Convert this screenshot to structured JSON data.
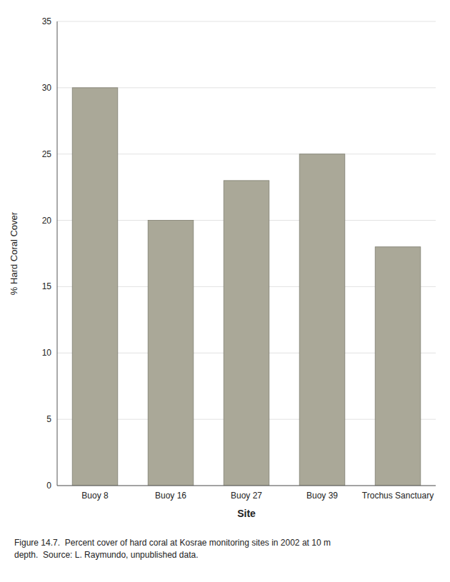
{
  "chart_data": {
    "type": "bar",
    "categories": [
      "Buoy 8",
      "Buoy 16",
      "Buoy 27",
      "Buoy 39",
      "Trochus Sanctuary"
    ],
    "values": [
      30,
      20,
      23,
      25,
      18
    ],
    "color": "#aaa898",
    "xlabel": "Site",
    "ylabel": "% Hard Coral Cover",
    "ylim": [
      0,
      35
    ],
    "yticks": [
      0,
      5,
      10,
      15,
      20,
      25,
      30,
      35
    ],
    "grid": true,
    "annotations": [
      "Figure 14.7.  Percent cover of hard coral at Kosrae monitoring sites in 2002 at 10 m",
      "depth.  Source: L. Raymundo, unpublished data."
    ]
  }
}
